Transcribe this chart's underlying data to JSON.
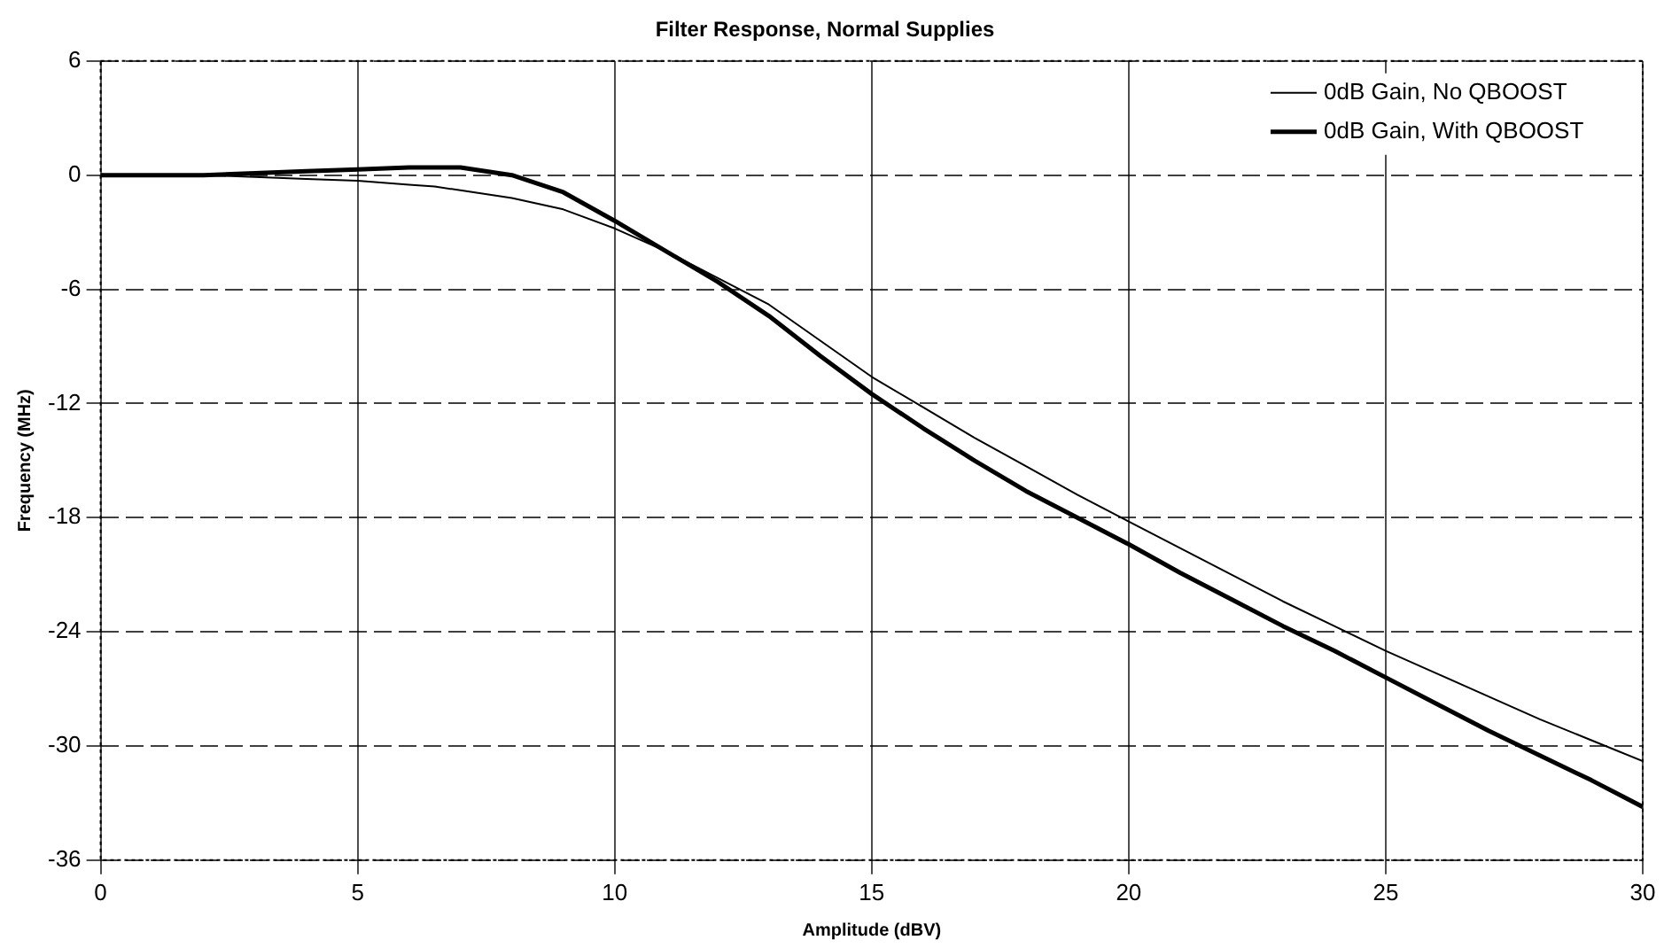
{
  "chart_data": {
    "type": "line",
    "title": "Filter Response, Normal Supplies",
    "xlabel": "Amplitude (dBV)",
    "ylabel": "Frequency (MHz)",
    "xlim": [
      0,
      30
    ],
    "xticks": [
      0,
      5,
      10,
      15,
      20,
      25,
      30
    ],
    "ylim": [
      -36,
      6
    ],
    "yticks": [
      -36,
      -30,
      -24,
      -18,
      -12,
      -6,
      0,
      6
    ],
    "grid": true,
    "legend": "top right",
    "marker": "none",
    "line_style": "solid",
    "x": [
      0,
      1,
      2,
      3,
      4,
      5,
      6,
      6.5,
      7,
      8,
      9,
      10,
      11,
      12,
      13,
      14,
      15,
      16,
      17,
      18,
      19,
      20,
      21,
      22,
      23,
      24,
      25,
      26,
      27,
      28,
      29,
      30
    ],
    "series": [
      {
        "name": "0dB Gain, No QBOOST",
        "color": "#000000",
        "values": [
          0,
          0,
          0,
          -0.1,
          -0.2,
          -0.3,
          -0.5,
          -0.6,
          -0.8,
          -1.2,
          -1.8,
          -2.8,
          -4,
          -5.4,
          -6.8,
          -8.7,
          -10.6,
          -12.2,
          -13.8,
          -15.3,
          -16.8,
          -18.2,
          -19.6,
          -21,
          -22.4,
          -23.7,
          -25,
          -26.2,
          -27.4,
          -28.6,
          -29.7,
          -30.8
        ]
      },
      {
        "name": "0dB Gain, With QBOOST",
        "color": "#000000",
        "values": [
          0,
          0,
          0,
          0.1,
          0.2,
          0.3,
          0.4,
          0.4,
          0.4,
          0,
          -0.9,
          -2.4,
          -4,
          -5.6,
          -7.4,
          -9.5,
          -11.5,
          -13.3,
          -15,
          -16.6,
          -18,
          -19.4,
          -20.9,
          -22.3,
          -23.7,
          -25,
          -26.4,
          -27.8,
          -29.2,
          -30.5,
          -31.8,
          -33.2
        ]
      }
    ]
  }
}
